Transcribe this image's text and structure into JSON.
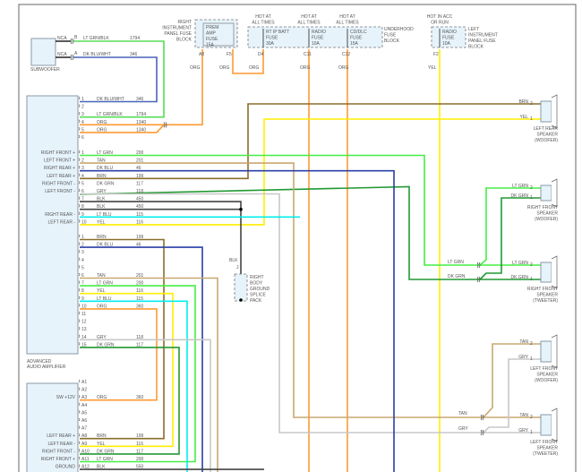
{
  "colors": {
    "LT GRN": "#44ee44",
    "DK GRN": "#229933",
    "DK BLU": "#2a3fa8",
    "DK BLU/WHT": "#4a64b8",
    "LT GRN/BLK": "#55dd55",
    "BRN": "#8b6d2a",
    "TAN": "#c8a870",
    "YEL": "#ffee00",
    "ORG": "#ff9933",
    "LT BLU": "#00eeee",
    "GRY": "#c8c8c8",
    "BLK": "#444444"
  },
  "subwoofer": {
    "label": "SUBWOOFER",
    "pins": [
      {
        "nca": "NCA",
        "pin": "B",
        "color": "LT GRN/BLK",
        "circuit": "1794"
      },
      {
        "nca": "NCA",
        "pin": "A",
        "color": "DK BLU/WHT",
        "circuit": "346"
      }
    ]
  },
  "amp": {
    "label1": "ADVANCED",
    "label2": "AUDIO AMPLIFIER",
    "groups": [
      [
        {
          "n": "1",
          "c": "DK BLU/WHT",
          "k": "346",
          "f": ""
        },
        {
          "n": "2",
          "c": "",
          "k": "",
          "f": ""
        },
        {
          "n": "3",
          "c": "LT GRN/BLK",
          "k": "1794",
          "f": ""
        },
        {
          "n": "4",
          "c": "ORG",
          "k": "1340",
          "f": ""
        },
        {
          "n": "5",
          "c": "ORG",
          "k": "1340",
          "f": ""
        },
        {
          "n": "6",
          "c": "",
          "k": "",
          "f": ""
        }
      ],
      [
        {
          "n": "1",
          "c": "LT GRN",
          "k": "200",
          "f": "RIGHT FRONT +"
        },
        {
          "n": "2",
          "c": "TAN",
          "k": "201",
          "f": "LEFT FRONT +"
        },
        {
          "n": "3",
          "c": "DK BLU",
          "k": "46",
          "f": "RIGHT REAR +"
        },
        {
          "n": "4",
          "c": "BRN",
          "k": "199",
          "f": "LEFT REAR +"
        },
        {
          "n": "5",
          "c": "DK GRN",
          "k": "117",
          "f": "RIGHT FRONT -"
        },
        {
          "n": "6",
          "c": "GRY",
          "k": "118",
          "f": "LEFT FRONT -"
        },
        {
          "n": "7",
          "c": "BLK",
          "k": "450",
          "f": ""
        },
        {
          "n": "8",
          "c": "BLK",
          "k": "450",
          "f": ""
        },
        {
          "n": "9",
          "c": "LT BLU",
          "k": "115",
          "f": "RIGHT REAR -"
        },
        {
          "n": "10",
          "c": "YEL",
          "k": "116",
          "f": "LEFT REAR -"
        }
      ],
      [
        {
          "n": "1",
          "c": "BRN",
          "k": "199",
          "f": ""
        },
        {
          "n": "2",
          "c": "DK BLU",
          "k": "46",
          "f": ""
        },
        {
          "n": "3",
          "c": "",
          "k": "",
          "f": ""
        },
        {
          "n": "4",
          "c": "",
          "k": "",
          "f": ""
        },
        {
          "n": "5",
          "c": "",
          "k": "",
          "f": ""
        },
        {
          "n": "6",
          "c": "TAN",
          "k": "201",
          "f": ""
        },
        {
          "n": "7",
          "c": "LT GRN",
          "k": "200",
          "f": ""
        },
        {
          "n": "8",
          "c": "YEL",
          "k": "116",
          "f": ""
        },
        {
          "n": "9",
          "c": "LT BLU",
          "k": "115",
          "f": ""
        },
        {
          "n": "10",
          "c": "ORG",
          "k": "360",
          "f": ""
        },
        {
          "n": "11",
          "c": "",
          "k": "",
          "f": ""
        },
        {
          "n": "12",
          "c": "",
          "k": "",
          "f": ""
        },
        {
          "n": "13",
          "c": "",
          "k": "",
          "f": ""
        },
        {
          "n": "14",
          "c": "GRY",
          "k": "118",
          "f": ""
        },
        {
          "n": "15",
          "c": "DK GRN",
          "k": "117",
          "f": ""
        }
      ]
    ]
  },
  "radio": {
    "pins": [
      {
        "n": "A1",
        "c": "",
        "k": "",
        "f": ""
      },
      {
        "n": "A2",
        "c": "",
        "k": "",
        "f": ""
      },
      {
        "n": "A3",
        "c": "ORG",
        "k": "360",
        "f": "SW +12V"
      },
      {
        "n": "A4",
        "c": "",
        "k": "",
        "f": ""
      },
      {
        "n": "A5",
        "c": "",
        "k": "",
        "f": ""
      },
      {
        "n": "A6",
        "c": "",
        "k": "",
        "f": ""
      },
      {
        "n": "A7",
        "c": "",
        "k": "",
        "f": ""
      },
      {
        "n": "A8",
        "c": "BRN",
        "k": "199",
        "f": "LEFT REAR +"
      },
      {
        "n": "A9",
        "c": "YEL",
        "k": "116",
        "f": "LEFT REAR -"
      },
      {
        "n": "A10",
        "c": "DK GRN",
        "k": "117",
        "f": "RIGHT FRONT -"
      },
      {
        "n": "A11",
        "c": "LT GRN",
        "k": "200",
        "f": "RIGHT FRONT +"
      },
      {
        "n": "A12",
        "c": "BLK",
        "k": "550",
        "f": "GROUND"
      }
    ]
  },
  "fuses": {
    "right_ip": {
      "block": [
        "RIGHT",
        "INSTRUMENT",
        "PANEL FUSE",
        "BLOCK"
      ],
      "fuse": [
        "PREM",
        "AMP",
        "FUSE",
        "15A"
      ],
      "pin_in": "A8",
      "pin_out": "F5",
      "wire_in": "ORG",
      "wire_out": "ORG"
    },
    "underhood": {
      "block": [
        "UNDERHOOD",
        "FUSE",
        "BLOCK"
      ],
      "fuses": [
        {
          "hot": [
            "HOT AT",
            "ALL TIMES"
          ],
          "fuse": [
            "RT IP BATT",
            "FUSE",
            "30A"
          ],
          "pin": "D4",
          "wire": "ORG"
        },
        {
          "hot": [
            "HOT AT",
            "ALL TIMES"
          ],
          "fuse": [
            "RADIO",
            "FUSE",
            "10A"
          ],
          "pin": "C11",
          "wire": "ORG"
        },
        {
          "hot": [
            "HOT AT",
            "ALL TIMES"
          ],
          "fuse": [
            "CD/DLC",
            "FUSE",
            "15A"
          ],
          "pin": "C12",
          "wire": "ORG"
        }
      ]
    },
    "left_ip": {
      "hot": [
        "HOT IN ACC",
        "OR RUN"
      ],
      "block": [
        "LEFT",
        "INSTRUMENT",
        "PANEL FUSE",
        "BLOCK"
      ],
      "fuse": [
        "RADIO",
        "FUSE",
        "10A"
      ],
      "pin": "F2",
      "wire": "YEL"
    }
  },
  "splice": {
    "wire": "BLK",
    "pin": "J",
    "label": [
      "RIGHT",
      "BODY",
      "GROUND",
      "SPLICE",
      "PACK"
    ]
  },
  "speakers": [
    {
      "name": [
        "LEFT REAR",
        "SPEAKER",
        "(WOOFER)"
      ],
      "p2": "BRN",
      "p1": "YEL"
    },
    {
      "name": [
        "RIGHT FRONT",
        "SPEAKER",
        "(WOOFER)"
      ],
      "p2": "LT GRN",
      "p1": "DK GRN"
    },
    {
      "name": [
        "RIGHT FRONT",
        "SPEAKER",
        "(TWEETER)"
      ],
      "p2": "LT GRN",
      "p1": "DK GRN"
    },
    {
      "name": [
        "LEFT FRONT",
        "SPEAKER",
        "(WOOFER)"
      ],
      "p2": "TAN",
      "p1": "GRY"
    },
    {
      "name": [
        "LEFT FRONT",
        "SPEAKER",
        "(TWEETER)"
      ],
      "p2": "TAN",
      "p1": "GRY"
    }
  ],
  "inline": [
    {
      "c": "LT GRN"
    },
    {
      "c": "DK GRN"
    },
    {
      "c": "TAN"
    },
    {
      "c": "GRY"
    }
  ]
}
